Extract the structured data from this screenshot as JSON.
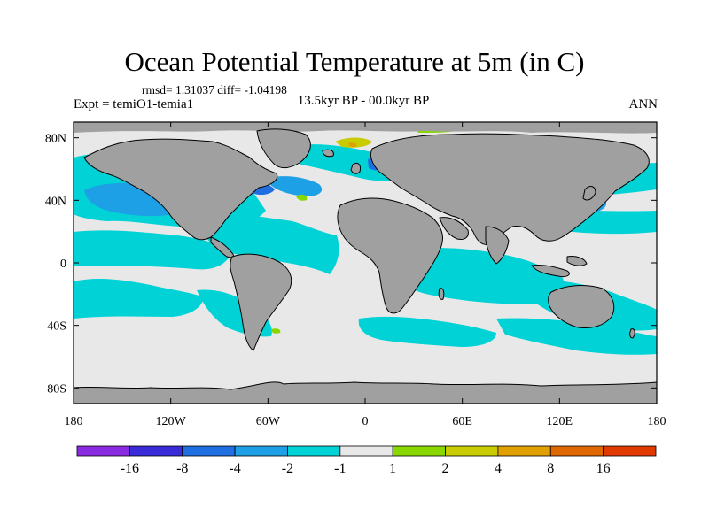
{
  "title": "Ocean Potential Temperature at 5m (in C)",
  "stats_line": "rmsd= 1.31037 diff= -1.04198",
  "experiment": "Expt = temiO1-temia1",
  "period": "13.5kyr BP - 00.0kyr BP",
  "season": "ANN",
  "map": {
    "projection": "cylindrical-equidistant",
    "lon_range": [
      -180,
      180
    ],
    "lat_range": [
      -90,
      90
    ],
    "x_ticks": [
      {
        "lon": -180,
        "label": "180"
      },
      {
        "lon": -120,
        "label": "120W"
      },
      {
        "lon": -60,
        "label": "60W"
      },
      {
        "lon": 0,
        "label": "0"
      },
      {
        "lon": 60,
        "label": "60E"
      },
      {
        "lon": 120,
        "label": "120E"
      },
      {
        "lon": 180,
        "label": "180"
      }
    ],
    "y_ticks": [
      {
        "lat": 80,
        "label": "80N"
      },
      {
        "lat": 40,
        "label": "40N"
      },
      {
        "lat": 0,
        "label": "0"
      },
      {
        "lat": -40,
        "label": "40S"
      },
      {
        "lat": -80,
        "label": "80S"
      }
    ],
    "land_color": "#a0a0a0",
    "background_bin_color": "#e8e8e8"
  },
  "colorbar": {
    "colors": [
      "#8a2be2",
      "#3a2bd8",
      "#1f6fe0",
      "#1ea0e6",
      "#00d2d6",
      "#e8e8e8",
      "#88d800",
      "#c8cc00",
      "#e0a000",
      "#e06800",
      "#e03a00"
    ],
    "labels": [
      "-16",
      "-8",
      "-4",
      "-2",
      "-1",
      "1",
      "2",
      "4",
      "8",
      "16"
    ]
  }
}
